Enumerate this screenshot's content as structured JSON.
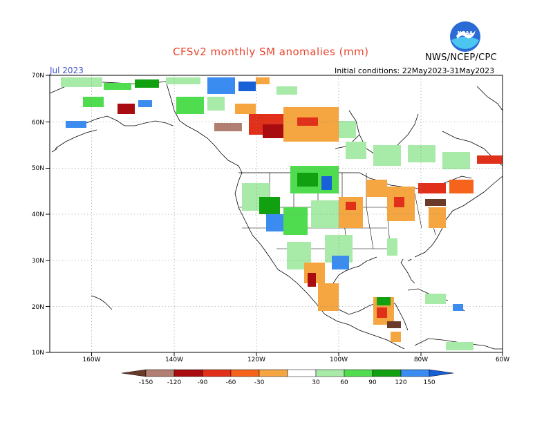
{
  "header": {
    "title": "CFSv2 monthly SM anomalies (mm)",
    "valid_month": "Jul 2023",
    "initial_conditions": "Initial conditions: 22May2023-31May2023",
    "agency": "NWS/NCEP/CPC",
    "logo_name": "noaa-logo"
  },
  "axes": {
    "lat_labels": [
      "70N",
      "60N",
      "50N",
      "40N",
      "30N",
      "20N",
      "10N"
    ],
    "lon_labels": [
      "160W",
      "140W",
      "120W",
      "100W",
      "80W",
      "60W"
    ]
  },
  "legend": {
    "labels": [
      "-150",
      "-120",
      "-90",
      "-60",
      "-30",
      "30",
      "60",
      "90",
      "120",
      "150"
    ],
    "colors": [
      "#6b3b2a",
      "#b07f72",
      "#a80c10",
      "#e0301a",
      "#f5641a",
      "#f5a640",
      "#ffffff",
      "#a8eaa8",
      "#4fdc4f",
      "#10a010",
      "#3b8cf0",
      "#1860d8"
    ]
  }
}
